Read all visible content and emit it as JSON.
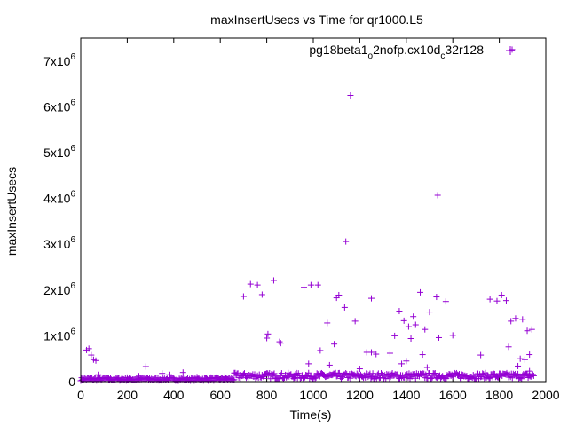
{
  "chart_data": {
    "type": "scatter",
    "title": "maxInsertUsecs vs Time for qr1000.L5",
    "xlabel": "Time(s)",
    "ylabel": "maxInsertUsecs",
    "xlim": [
      0,
      2000
    ],
    "ylim": [
      0,
      7500000
    ],
    "x_ticks": [
      0,
      200,
      400,
      600,
      800,
      1000,
      1200,
      1400,
      1600,
      1800,
      2000
    ],
    "x_tick_labels": [
      "0",
      "200",
      "400",
      "600",
      "800",
      "1000",
      "1200",
      "1400",
      "1600",
      "1800",
      "2000"
    ],
    "y_ticks": [
      0,
      1000000,
      2000000,
      3000000,
      4000000,
      5000000,
      6000000,
      7000000
    ],
    "y_tick_labels": [
      {
        "base": "0",
        "exp": ""
      },
      {
        "base": "1x10",
        "exp": "6"
      },
      {
        "base": "2x10",
        "exp": "6"
      },
      {
        "base": "3x10",
        "exp": "6"
      },
      {
        "base": "4x10",
        "exp": "6"
      },
      {
        "base": "5x10",
        "exp": "6"
      },
      {
        "base": "6x10",
        "exp": "6"
      },
      {
        "base": "7x10",
        "exp": "6"
      }
    ],
    "legend": {
      "placement": "top-right",
      "parts": [
        {
          "text": "pg18beta1",
          "sub": false
        },
        {
          "text": "o",
          "sub": true
        },
        {
          "text": "2nofp.cx10d",
          "sub": false
        },
        {
          "text": "c",
          "sub": true
        },
        {
          "text": "32r128",
          "sub": false
        }
      ]
    },
    "series": [
      {
        "name": "pg18beta1_o2nofp.cx10d_c32r128",
        "color": "#9400d3",
        "marker": "plus",
        "points": [
          [
            5,
            30000
          ],
          [
            15,
            60000
          ],
          [
            25,
            690000
          ],
          [
            35,
            720000
          ],
          [
            45,
            580000
          ],
          [
            55,
            480000
          ],
          [
            65,
            460000
          ],
          [
            75,
            150000
          ],
          [
            120,
            80000
          ],
          [
            200,
            90000
          ],
          [
            250,
            120000
          ],
          [
            280,
            330000
          ],
          [
            350,
            180000
          ],
          [
            380,
            150000
          ],
          [
            440,
            200000
          ],
          [
            500,
            100000
          ],
          [
            560,
            90000
          ],
          [
            620,
            110000
          ],
          [
            700,
            1860000
          ],
          [
            730,
            2130000
          ],
          [
            760,
            2110000
          ],
          [
            780,
            1900000
          ],
          [
            800,
            950000
          ],
          [
            805,
            1040000
          ],
          [
            830,
            2210000
          ],
          [
            855,
            870000
          ],
          [
            860,
            840000
          ],
          [
            960,
            2060000
          ],
          [
            990,
            2110000
          ],
          [
            1020,
            2110000
          ],
          [
            980,
            390000
          ],
          [
            1030,
            680000
          ],
          [
            1060,
            1280000
          ],
          [
            1070,
            360000
          ],
          [
            1090,
            820000
          ],
          [
            1100,
            1830000
          ],
          [
            1110,
            1890000
          ],
          [
            1135,
            1620000
          ],
          [
            1140,
            3060000
          ],
          [
            1160,
            6250000
          ],
          [
            1180,
            1320000
          ],
          [
            1200,
            280000
          ],
          [
            1230,
            640000
          ],
          [
            1250,
            640000
          ],
          [
            1270,
            600000
          ],
          [
            1250,
            1820000
          ],
          [
            1330,
            620000
          ],
          [
            1350,
            1000000
          ],
          [
            1370,
            1540000
          ],
          [
            1380,
            390000
          ],
          [
            1390,
            1330000
          ],
          [
            1400,
            450000
          ],
          [
            1410,
            1200000
          ],
          [
            1420,
            940000
          ],
          [
            1430,
            1420000
          ],
          [
            1440,
            1240000
          ],
          [
            1460,
            1950000
          ],
          [
            1470,
            590000
          ],
          [
            1480,
            1140000
          ],
          [
            1490,
            310000
          ],
          [
            1500,
            1520000
          ],
          [
            1530,
            1850000
          ],
          [
            1535,
            4070000
          ],
          [
            1540,
            960000
          ],
          [
            1570,
            1750000
          ],
          [
            1600,
            1010000
          ],
          [
            1720,
            580000
          ],
          [
            1760,
            1800000
          ],
          [
            1790,
            1760000
          ],
          [
            1810,
            1890000
          ],
          [
            1830,
            1770000
          ],
          [
            1840,
            760000
          ],
          [
            1850,
            1320000
          ],
          [
            1855,
            7250000
          ],
          [
            1870,
            1380000
          ],
          [
            1880,
            340000
          ],
          [
            1890,
            500000
          ],
          [
            1900,
            1360000
          ],
          [
            1910,
            480000
          ],
          [
            1920,
            1110000
          ],
          [
            1930,
            590000
          ],
          [
            1940,
            1140000
          ],
          [
            1930,
            230000
          ]
        ]
      }
    ],
    "background_band": {
      "x_start": 0,
      "x_end": 1950,
      "segments": [
        [
          0,
          660,
          20000,
          90000
        ],
        [
          660,
          1950,
          60000,
          190000
        ]
      ]
    }
  }
}
